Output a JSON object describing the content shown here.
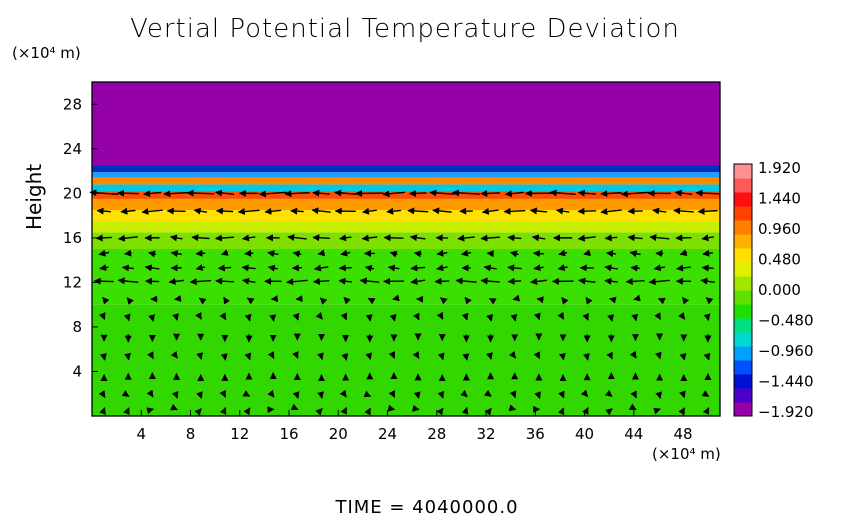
{
  "chart_data": {
    "type": "heatmap",
    "title": "Vertial Potential Temperature Deviation",
    "ylabel": "Height",
    "y_unit": "(×10⁴ m)",
    "x_unit": "(×10⁴ m)",
    "x_ticks": [
      "4",
      "8",
      "12",
      "16",
      "20",
      "24",
      "28",
      "32",
      "36",
      "40",
      "44",
      "48"
    ],
    "y_ticks": [
      "4",
      "8",
      "12",
      "16",
      "20",
      "24",
      "28"
    ],
    "xlim": [
      0,
      51
    ],
    "ylim": [
      0,
      30
    ],
    "colorbar_ticks": [
      "1.920",
      "1.440",
      "0.960",
      "0.480",
      "0.000",
      "−0.480",
      "−0.960",
      "−1.440",
      "−1.920"
    ],
    "colorbar_range": [
      -1.92,
      1.92
    ],
    "bands": [
      {
        "y": [
          0,
          10
        ],
        "color": "#33d700"
      },
      {
        "y": [
          10,
          15
        ],
        "color": "#3be000"
      },
      {
        "y": [
          15,
          16.5
        ],
        "color": "#7ee000"
      },
      {
        "y": [
          16.5,
          17.5
        ],
        "color": "#c8ee00"
      },
      {
        "y": [
          17.5,
          18.5
        ],
        "color": "#ffe000"
      },
      {
        "y": [
          18.5,
          19.5
        ],
        "color": "#ff9a00"
      },
      {
        "y": [
          19.5,
          20.2
        ],
        "color": "#ff5000"
      },
      {
        "y": [
          20.2,
          20.8
        ],
        "color": "#00c8e0"
      },
      {
        "y": [
          20.8,
          21.4
        ],
        "color": "#ff8800"
      },
      {
        "y": [
          21.4,
          21.9
        ],
        "color": "#1fa0ff"
      },
      {
        "y": [
          21.9,
          22.5
        ],
        "color": "#0030c0"
      },
      {
        "y": [
          22.5,
          30
        ],
        "color": "#9600a8"
      }
    ],
    "wind_rows": [
      {
        "y": 20.0,
        "u": -1.6,
        "v": 0.0
      },
      {
        "y": 18.4,
        "u": -1.2,
        "v": 0.0
      },
      {
        "y": 16.0,
        "u": -1.1,
        "v": 0.0
      },
      {
        "y": 14.6,
        "u": -0.6,
        "v": 0.0
      },
      {
        "y": 13.3,
        "u": -0.8,
        "v": 0.0
      },
      {
        "y": 12.1,
        "u": -1.2,
        "v": 0.0
      },
      {
        "y": 10.5,
        "u": -0.2,
        "v": 0.1
      },
      {
        "y": 8.8,
        "u": 0.1,
        "v": -0.3
      },
      {
        "y": 7.0,
        "u": 0.0,
        "v": -0.4
      },
      {
        "y": 5.3,
        "u": 0.1,
        "v": -0.3
      },
      {
        "y": 3.6,
        "u": 0.0,
        "v": 0.3
      },
      {
        "y": 1.8,
        "u": 0.1,
        "v": -0.2
      },
      {
        "y": 0.6,
        "u": 0.1,
        "v": 0.1
      }
    ],
    "colors": {
      "frame": "#000000",
      "arrow": "#000000",
      "colorbar": [
        "#9600a8",
        "#4a00c8",
        "#0010d0",
        "#0050ff",
        "#00a0ff",
        "#00d8d0",
        "#00e080",
        "#20e000",
        "#60e000",
        "#a0e800",
        "#e0f000",
        "#ffe000",
        "#ffb000",
        "#ff8000",
        "#ff4000",
        "#ff1010",
        "#ff5a5a",
        "#ff9090"
      ]
    }
  },
  "labels": {
    "time": "TIME  =  4040000.0"
  }
}
